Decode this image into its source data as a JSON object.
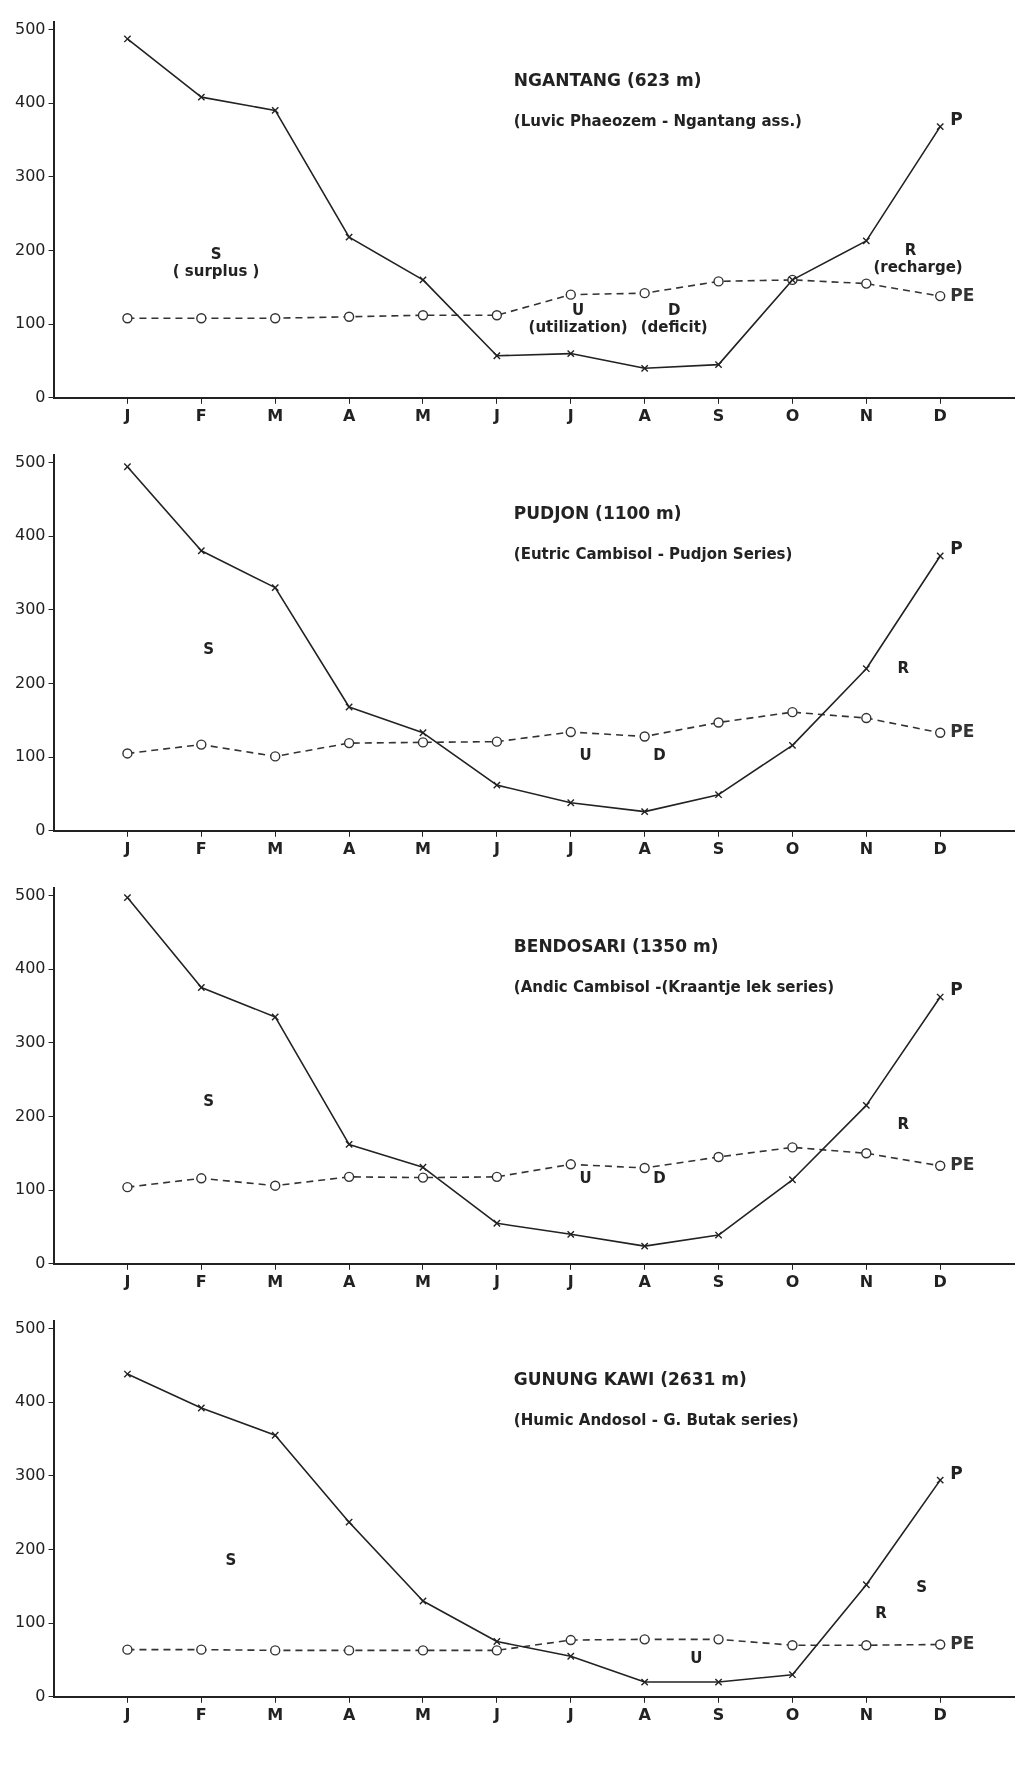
{
  "chart_data": [
    {
      "type": "line",
      "title": "NGANTANG (623 m)",
      "subtitle": "(Luvic Phaeozem - Ngantang ass.)",
      "categories": [
        "J",
        "F",
        "M",
        "A",
        "M",
        "J",
        "J",
        "A",
        "S",
        "O",
        "N",
        "D"
      ],
      "ylim": [
        0,
        510
      ],
      "yticks": [
        0,
        100,
        200,
        300,
        400,
        500
      ],
      "grid": false,
      "legend": false,
      "series": [
        {
          "name": "P",
          "color": "#222222",
          "marker": "cross",
          "line_style": "solid",
          "values": [
            487,
            408,
            390,
            218,
            160,
            57,
            60,
            40,
            45,
            160,
            213,
            368
          ]
        },
        {
          "name": "PE",
          "color": "#333333",
          "marker": "circle",
          "line_style": "dashed",
          "values": [
            108,
            108,
            108,
            110,
            112,
            112,
            140,
            142,
            158,
            160,
            155,
            138
          ]
        }
      ],
      "annotations": [
        "S",
        "( surplus )",
        "U",
        "(utilization)",
        "D",
        "(deficit)",
        "R",
        "(recharge)"
      ]
    },
    {
      "type": "line",
      "title": "PUDJON (1100 m)",
      "subtitle": "(Eutric Cambisol - Pudjon Series)",
      "categories": [
        "J",
        "F",
        "M",
        "A",
        "M",
        "J",
        "J",
        "A",
        "S",
        "O",
        "N",
        "D"
      ],
      "ylim": [
        0,
        510
      ],
      "yticks": [
        0,
        100,
        200,
        300,
        400,
        500
      ],
      "grid": false,
      "legend": false,
      "series": [
        {
          "name": "P",
          "color": "#222222",
          "marker": "cross",
          "line_style": "solid",
          "values": [
            494,
            380,
            330,
            168,
            133,
            62,
            38,
            26,
            49,
            116,
            220,
            373
          ]
        },
        {
          "name": "PE",
          "color": "#333333",
          "marker": "circle",
          "line_style": "dashed",
          "values": [
            105,
            117,
            101,
            119,
            120,
            121,
            134,
            128,
            147,
            161,
            153,
            133
          ]
        }
      ],
      "annotations": [
        "S",
        "U",
        "D",
        "R"
      ]
    },
    {
      "type": "line",
      "title": "BENDOSARI (1350 m)",
      "subtitle": "(Andic Cambisol -(Kraantje lek series)",
      "categories": [
        "J",
        "F",
        "M",
        "A",
        "M",
        "J",
        "J",
        "A",
        "S",
        "O",
        "N",
        "D"
      ],
      "ylim": [
        0,
        510
      ],
      "yticks": [
        0,
        100,
        200,
        300,
        400,
        500
      ],
      "grid": false,
      "legend": false,
      "series": [
        {
          "name": "P",
          "color": "#222222",
          "marker": "cross",
          "line_style": "solid",
          "values": [
            497,
            375,
            335,
            162,
            131,
            55,
            40,
            24,
            39,
            114,
            215,
            362
          ]
        },
        {
          "name": "PE",
          "color": "#333333",
          "marker": "circle",
          "line_style": "dashed",
          "values": [
            104,
            116,
            106,
            118,
            117,
            118,
            135,
            130,
            145,
            158,
            150,
            133
          ]
        }
      ],
      "annotations": [
        "S",
        "U",
        "D",
        "R"
      ]
    },
    {
      "type": "line",
      "title": "GUNUNG KAWI (2631 m)",
      "subtitle": "(Humic Andosol - G. Butak series)",
      "categories": [
        "J",
        "F",
        "M",
        "A",
        "M",
        "J",
        "J",
        "A",
        "S",
        "O",
        "N",
        "D"
      ],
      "ylim": [
        0,
        510
      ],
      "yticks": [
        0,
        100,
        200,
        300,
        400,
        500
      ],
      "grid": false,
      "legend": false,
      "series": [
        {
          "name": "P",
          "color": "#222222",
          "marker": "cross",
          "line_style": "solid",
          "values": [
            438,
            392,
            355,
            237,
            130,
            75,
            55,
            20,
            20,
            30,
            152,
            294
          ]
        },
        {
          "name": "PE",
          "color": "#333333",
          "marker": "circle",
          "line_style": "dashed",
          "values": [
            64,
            64,
            63,
            63,
            63,
            63,
            77,
            78,
            78,
            70,
            70,
            71
          ]
        }
      ],
      "annotations": [
        "S",
        "U",
        "R",
        "S"
      ]
    }
  ]
}
